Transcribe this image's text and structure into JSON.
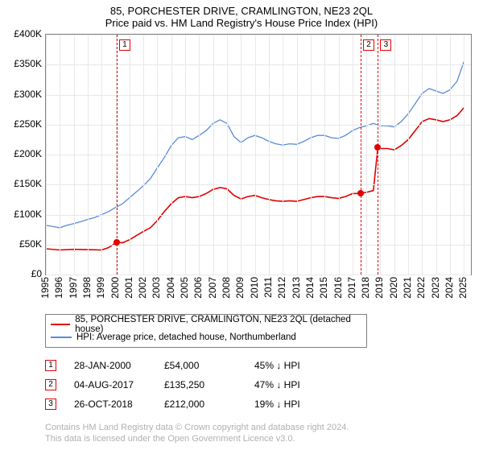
{
  "title_line1": "85, PORCHESTER DRIVE, CRAMLINGTON, NE23 2QL",
  "title_line2": "Price paid vs. HM Land Registry's House Price Index (HPI)",
  "chart": {
    "type": "line",
    "x_domain": [
      1995,
      2025.5
    ],
    "y_domain": [
      0,
      400000
    ],
    "y_ticks": [
      0,
      50000,
      100000,
      150000,
      200000,
      250000,
      300000,
      350000,
      400000
    ],
    "y_tick_labels": [
      "£0",
      "£50K",
      "£100K",
      "£150K",
      "£200K",
      "£250K",
      "£300K",
      "£350K",
      "£400K"
    ],
    "x_ticks": [
      1995,
      1996,
      1997,
      1998,
      1999,
      2000,
      2001,
      2002,
      2003,
      2004,
      2005,
      2006,
      2007,
      2008,
      2009,
      2010,
      2011,
      2012,
      2013,
      2014,
      2015,
      2016,
      2017,
      2018,
      2019,
      2020,
      2021,
      2022,
      2023,
      2024,
      2025
    ],
    "grid_color": "#e8e8e8",
    "axis_color": "#808080",
    "background_color": "#ffffff",
    "series": [
      {
        "name": "property",
        "color": "#e00000",
        "width": 1.6,
        "points": [
          [
            1995,
            43000
          ],
          [
            1996,
            41000
          ],
          [
            1997,
            42000
          ],
          [
            1998,
            41500
          ],
          [
            1999,
            41000
          ],
          [
            1999.5,
            45000
          ],
          [
            2000.08,
            54000
          ],
          [
            2000.5,
            53000
          ],
          [
            2001,
            58000
          ],
          [
            2001.5,
            65000
          ],
          [
            2002,
            72000
          ],
          [
            2002.5,
            78000
          ],
          [
            2003,
            90000
          ],
          [
            2003.5,
            105000
          ],
          [
            2004,
            118000
          ],
          [
            2004.5,
            128000
          ],
          [
            2005,
            130000
          ],
          [
            2005.5,
            128000
          ],
          [
            2006,
            130000
          ],
          [
            2006.5,
            135000
          ],
          [
            2007,
            142000
          ],
          [
            2007.5,
            145000
          ],
          [
            2008,
            143000
          ],
          [
            2008.5,
            132000
          ],
          [
            2009,
            126000
          ],
          [
            2009.5,
            130000
          ],
          [
            2010,
            132000
          ],
          [
            2010.5,
            128000
          ],
          [
            2011,
            125000
          ],
          [
            2011.5,
            123000
          ],
          [
            2012,
            122000
          ],
          [
            2012.5,
            123000
          ],
          [
            2013,
            122000
          ],
          [
            2013.5,
            125000
          ],
          [
            2014,
            128000
          ],
          [
            2014.5,
            130000
          ],
          [
            2015,
            130000
          ],
          [
            2015.5,
            128000
          ],
          [
            2016,
            127000
          ],
          [
            2016.5,
            130000
          ],
          [
            2017,
            135000
          ],
          [
            2017.59,
            135250
          ],
          [
            2018,
            137000
          ],
          [
            2018.5,
            140000
          ],
          [
            2018.82,
            212000
          ],
          [
            2019,
            210000
          ],
          [
            2019.5,
            210000
          ],
          [
            2020,
            208000
          ],
          [
            2020.5,
            215000
          ],
          [
            2021,
            225000
          ],
          [
            2021.5,
            240000
          ],
          [
            2022,
            255000
          ],
          [
            2022.5,
            260000
          ],
          [
            2023,
            258000
          ],
          [
            2023.5,
            255000
          ],
          [
            2024,
            258000
          ],
          [
            2024.5,
            265000
          ],
          [
            2025,
            278000
          ]
        ]
      },
      {
        "name": "hpi",
        "color": "#5a8bd6",
        "width": 1.3,
        "points": [
          [
            1995,
            82000
          ],
          [
            1995.5,
            80000
          ],
          [
            1996,
            78000
          ],
          [
            1996.5,
            82000
          ],
          [
            1997,
            85000
          ],
          [
            1997.5,
            88000
          ],
          [
            1998,
            92000
          ],
          [
            1998.5,
            95000
          ],
          [
            1999,
            100000
          ],
          [
            1999.5,
            105000
          ],
          [
            2000,
            112000
          ],
          [
            2000.5,
            118000
          ],
          [
            2001,
            128000
          ],
          [
            2001.5,
            138000
          ],
          [
            2002,
            148000
          ],
          [
            2002.5,
            160000
          ],
          [
            2003,
            178000
          ],
          [
            2003.5,
            195000
          ],
          [
            2004,
            215000
          ],
          [
            2004.5,
            228000
          ],
          [
            2005,
            230000
          ],
          [
            2005.5,
            225000
          ],
          [
            2006,
            232000
          ],
          [
            2006.5,
            240000
          ],
          [
            2007,
            252000
          ],
          [
            2007.5,
            258000
          ],
          [
            2008,
            252000
          ],
          [
            2008.5,
            230000
          ],
          [
            2009,
            220000
          ],
          [
            2009.5,
            228000
          ],
          [
            2010,
            232000
          ],
          [
            2010.5,
            228000
          ],
          [
            2011,
            222000
          ],
          [
            2011.5,
            218000
          ],
          [
            2012,
            216000
          ],
          [
            2012.5,
            218000
          ],
          [
            2013,
            217000
          ],
          [
            2013.5,
            222000
          ],
          [
            2014,
            228000
          ],
          [
            2014.5,
            232000
          ],
          [
            2015,
            232000
          ],
          [
            2015.5,
            228000
          ],
          [
            2016,
            227000
          ],
          [
            2016.5,
            232000
          ],
          [
            2017,
            240000
          ],
          [
            2017.5,
            245000
          ],
          [
            2018,
            248000
          ],
          [
            2018.5,
            252000
          ],
          [
            2019,
            248000
          ],
          [
            2019.5,
            248000
          ],
          [
            2020,
            246000
          ],
          [
            2020.5,
            255000
          ],
          [
            2021,
            268000
          ],
          [
            2021.5,
            285000
          ],
          [
            2022,
            302000
          ],
          [
            2022.5,
            310000
          ],
          [
            2023,
            306000
          ],
          [
            2023.5,
            302000
          ],
          [
            2024,
            308000
          ],
          [
            2024.5,
            322000
          ],
          [
            2025,
            355000
          ]
        ]
      }
    ],
    "sale_markers": [
      {
        "n": "1",
        "x": 2000.08,
        "price": 54000,
        "color": "#e00000"
      },
      {
        "n": "2",
        "x": 2017.59,
        "price": 135250,
        "color": "#e00000"
      },
      {
        "n": "3",
        "x": 2018.82,
        "price": 212000,
        "color": "#e00000"
      }
    ]
  },
  "legend": {
    "items": [
      {
        "color": "#e00000",
        "label": "85, PORCHESTER DRIVE, CRAMLINGTON, NE23 2QL (detached house)"
      },
      {
        "color": "#5a8bd6",
        "label": "HPI: Average price, detached house, Northumberland"
      }
    ]
  },
  "sales": [
    {
      "n": "1",
      "date": "28-JAN-2000",
      "price": "£54,000",
      "delta": "45% ↓ HPI",
      "color": "#e00000"
    },
    {
      "n": "2",
      "date": "04-AUG-2017",
      "price": "£135,250",
      "delta": "47% ↓ HPI",
      "color": "#e00000"
    },
    {
      "n": "3",
      "date": "26-OCT-2018",
      "price": "£212,000",
      "delta": "19% ↓ HPI",
      "color": "#e00000"
    }
  ],
  "footer_line1": "Contains HM Land Registry data © Crown copyright and database right 2024.",
  "footer_line2": "This data is licensed under the Open Government Licence v3.0."
}
